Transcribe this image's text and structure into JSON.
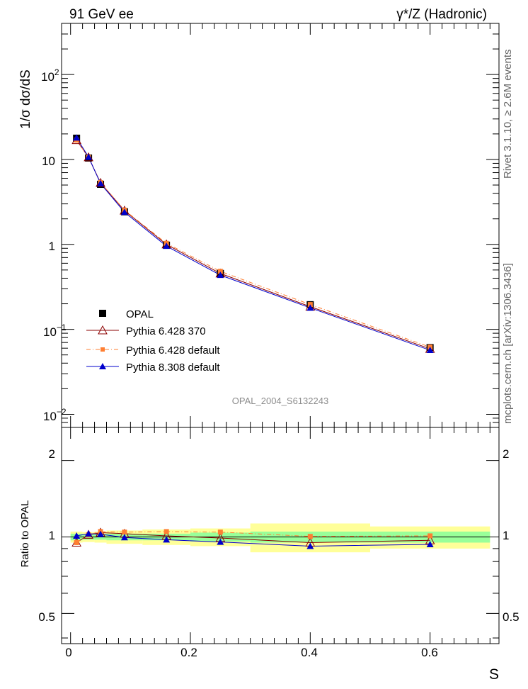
{
  "header": {
    "left": "91 GeV ee",
    "right": "γ*/Z (Hadronic)"
  },
  "side_labels": {
    "rivet": "Rivet 3.1.10, ≥ 2.6M events",
    "mcplots": "mcplots.cern.ch [arXiv:1306.3436]"
  },
  "watermark": "OPAL_2004_S6132243",
  "axis_labels": {
    "ylabel_main": "1/σ dσ/dS",
    "ylabel_ratio": "Ratio to OPAL",
    "xlabel": "S"
  },
  "tick_labels": {
    "main_y": {
      "m2": "10",
      "m2_exp": "−2",
      "m1": "10",
      "m1_exp": "−1",
      "p0": "1",
      "p1": "10",
      "p2": "10",
      "p2_exp": "2"
    },
    "ratio_y": [
      "0.5",
      "1",
      "2"
    ],
    "x": [
      "0",
      "0.2",
      "0.4",
      "0.6"
    ]
  },
  "colors": {
    "opal": "#000000",
    "py6_370": "#8b0000",
    "py6_default": "#ff7f32",
    "py8": "#0000cc",
    "band_inner": "#99ff99",
    "band_outer": "#ffff99"
  },
  "chart_data": {
    "type": "line",
    "x_axis": {
      "label": "S",
      "lim": [
        -0.015,
        0.715
      ]
    },
    "main": {
      "yscale": "log",
      "ylim": [
        0.007,
        400
      ],
      "ylabel": "1/σ dσ/dS"
    },
    "ratio": {
      "yscale": "log",
      "ylim": [
        0.38,
        2.7
      ],
      "ylabel": "Ratio to OPAL"
    },
    "legend": {
      "placement": "lower-left",
      "entries": [
        "OPAL",
        "Pythia 6.428 370",
        "Pythia 6.428 default",
        "Pythia 8.308 default"
      ]
    },
    "x": [
      0.01,
      0.03,
      0.05,
      0.09,
      0.16,
      0.25,
      0.4,
      0.6
    ],
    "bin_edges": [
      0.0,
      0.02,
      0.04,
      0.06,
      0.12,
      0.2,
      0.3,
      0.5,
      0.7
    ],
    "series": [
      {
        "name": "OPAL",
        "marker": "square",
        "values": [
          17.8,
          10.4,
          5.1,
          2.42,
          0.98,
          0.455,
          0.195,
          0.061
        ]
      },
      {
        "name": "Pythia 6.428 370",
        "marker": "open-triangle",
        "values": [
          16.9,
          10.6,
          5.3,
          2.5,
          1.0,
          0.455,
          0.185,
          0.059
        ]
      },
      {
        "name": "Pythia 6.428 default",
        "marker": "small-square",
        "values": [
          16.9,
          10.6,
          5.35,
          2.53,
          1.03,
          0.482,
          0.196,
          0.0618
        ]
      },
      {
        "name": "Pythia 8.308 default",
        "marker": "filled-triangle",
        "values": [
          18.0,
          10.7,
          5.22,
          2.4,
          0.955,
          0.435,
          0.179,
          0.0568
        ]
      }
    ],
    "ratio_series": [
      {
        "name": "Pythia 6.428 370",
        "values": [
          0.95,
          1.02,
          1.04,
          1.03,
          1.01,
          0.99,
          0.95,
          0.97
        ]
      },
      {
        "name": "Pythia 6.428 default",
        "values": [
          0.95,
          1.02,
          1.05,
          1.045,
          1.05,
          1.045,
          1.005,
          1.01
        ]
      },
      {
        "name": "Pythia 8.308 default",
        "values": [
          1.01,
          1.03,
          1.025,
          0.995,
          0.975,
          0.955,
          0.92,
          0.935
        ]
      }
    ],
    "uncertainty_band": {
      "inner": [
        0.03,
        0.025,
        0.025,
        0.03,
        0.03,
        0.04,
        0.05,
        0.05
      ],
      "outer": [
        0.05,
        0.045,
        0.05,
        0.06,
        0.07,
        0.08,
        0.13,
        0.1
      ]
    }
  }
}
